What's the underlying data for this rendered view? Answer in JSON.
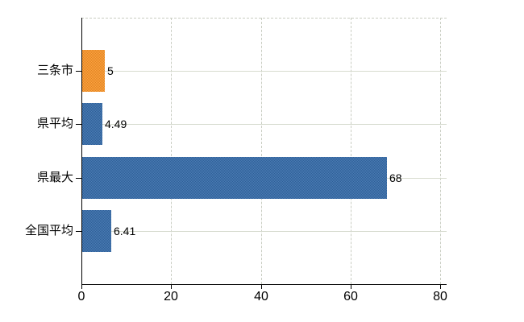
{
  "chart_data": {
    "type": "bar",
    "orientation": "horizontal",
    "title": "",
    "categories": [
      "三条市",
      "県平均",
      "県最大",
      "全国平均"
    ],
    "values": [
      5,
      4.49,
      68,
      6.41
    ],
    "value_labels": [
      "5",
      "4.49",
      "68",
      "6.41"
    ],
    "series_colors": [
      "#ee9331",
      "#3c6da5",
      "#3c6da5",
      "#3c6da5"
    ],
    "xlim": [
      0,
      80
    ],
    "x_ticks": [
      0,
      20,
      40,
      60,
      80
    ],
    "x_tick_labels": [
      "0",
      "20",
      "40",
      "60",
      "80"
    ],
    "grid": true,
    "grid_style": "dashed vertical lines at x ticks, light horizontal lines at category centers, dashed top border",
    "legend_position": "none",
    "colors": {
      "grid_dashed": "#c9cdc2",
      "grid_horizontal": "#d7dbcf",
      "axis": "#000000",
      "background": "#ffffff",
      "label_text": "#000000"
    }
  }
}
